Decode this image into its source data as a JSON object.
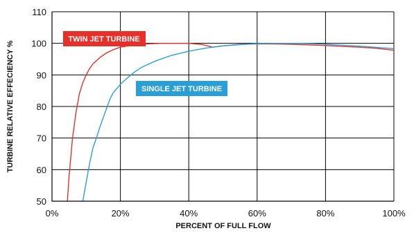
{
  "chart_data": {
    "type": "line",
    "xlabel": "PERCENT OF FULL FLOW",
    "ylabel": "TURBINE RELATIVE EFFECIENCY %",
    "xlim": [
      0,
      100
    ],
    "ylim": [
      50,
      110
    ],
    "x_ticks": [
      "0%",
      "20%",
      "40%",
      "60%",
      "80%",
      "100%"
    ],
    "y_ticks": [
      "50",
      "60",
      "70",
      "80",
      "90",
      "100",
      "110"
    ],
    "grid": true,
    "series": [
      {
        "name": "TWIN JET TURBINE",
        "color": "#e8302a",
        "x": [
          4.5,
          5.0,
          6.0,
          7.0,
          8.0,
          9.0,
          10.0,
          11.0,
          12.0,
          14.0,
          16.0,
          18.0,
          20.0,
          24.0,
          28.0,
          32.0,
          36.0,
          40.0,
          44.0,
          47.0,
          50.0,
          55.0,
          60.0,
          65.0,
          70.0,
          75.0,
          80.0,
          85.0,
          90.0,
          95.0,
          100.0
        ],
        "y": [
          50,
          58,
          70,
          78,
          84,
          87.5,
          90,
          92,
          93.5,
          95.5,
          97,
          98,
          98.8,
          99.5,
          99.8,
          100,
          100,
          100,
          99.6,
          98.8,
          99.2,
          99.7,
          99.8,
          99.8,
          99.7,
          99.5,
          99.3,
          99.0,
          98.8,
          98.4,
          97.8
        ]
      },
      {
        "name": "SINGLE JET TURBINE",
        "color": "#2a9fd6",
        "x": [
          9.0,
          10.0,
          11.0,
          12.0,
          13.0,
          14.0,
          15.0,
          16.0,
          17.0,
          18.0,
          20.0,
          22.0,
          24.0,
          26.0,
          30.0,
          35.0,
          40.0,
          45.0,
          50.0,
          55.0,
          60.0,
          65.0,
          70.0,
          75.0,
          80.0,
          85.0,
          90.0,
          95.0,
          100.0
        ],
        "y": [
          50,
          56,
          62,
          67,
          70,
          73.5,
          76.5,
          79.5,
          82.5,
          84.5,
          87,
          89,
          90.8,
          92.3,
          94.3,
          96.2,
          97.5,
          98.5,
          99.2,
          99.6,
          99.9,
          100,
          100,
          99.9,
          99.7,
          99.4,
          99.1,
          98.7,
          98.3
        ]
      }
    ]
  }
}
